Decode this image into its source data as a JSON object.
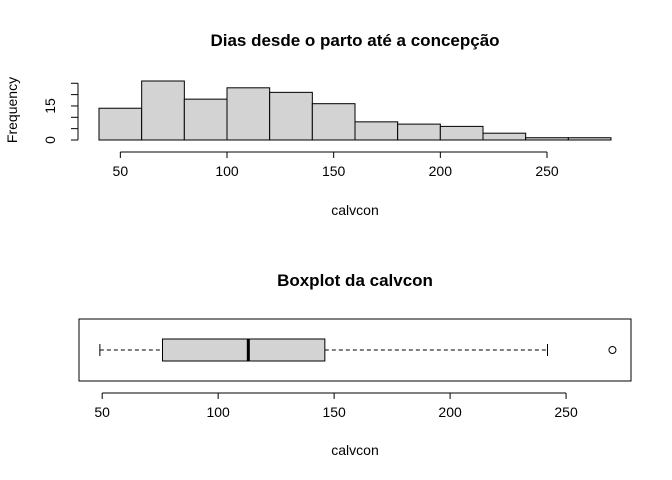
{
  "chart_data": [
    {
      "type": "bar",
      "title": "Dias desde o parto até a concepção",
      "xlabel": "calvcon",
      "ylabel": "Frequency",
      "bin_edges": [
        40,
        60,
        80,
        100,
        120,
        140,
        160,
        180,
        200,
        220,
        240,
        260,
        280
      ],
      "values": [
        14,
        26,
        18,
        23,
        21,
        16,
        8,
        7,
        6,
        3,
        1,
        1
      ],
      "xlim": [
        40,
        280
      ],
      "ylim": [
        0,
        26
      ],
      "x_ticks": [
        50,
        100,
        150,
        200,
        250
      ],
      "y_ticks": [
        0,
        15
      ],
      "bar_color": "#d3d3d3",
      "grid": false
    },
    {
      "type": "boxplot",
      "title": "Boxplot da calvcon",
      "xlabel": "calvcon",
      "orientation": "horizontal",
      "whisker_low": 49,
      "q1": 76,
      "median": 113,
      "q3": 146,
      "whisker_high": 242,
      "outliers": [
        270
      ],
      "xlim": [
        40,
        278
      ],
      "x_ticks": [
        50,
        100,
        150,
        200,
        250
      ],
      "box_color": "#d3d3d3",
      "grid": false
    }
  ]
}
